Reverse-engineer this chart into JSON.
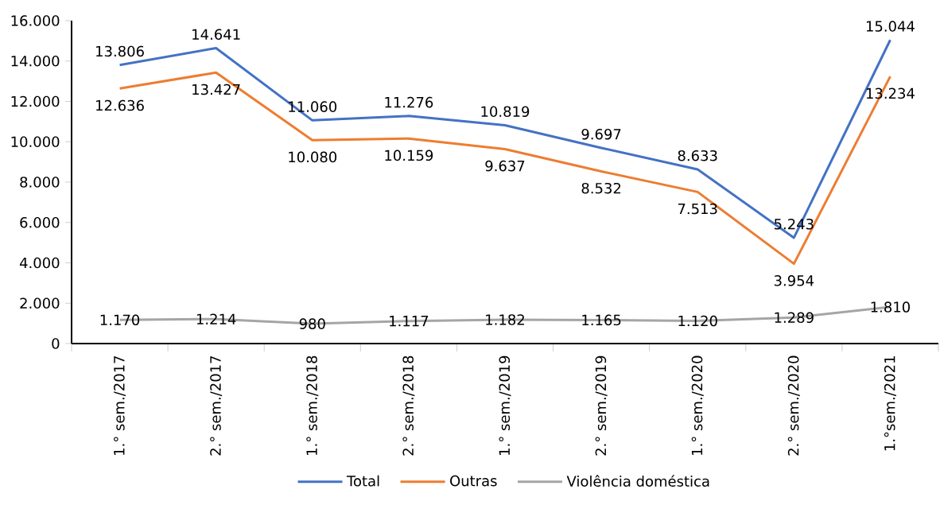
{
  "chart_data": {
    "type": "line",
    "categories": [
      "1.° sem./2017",
      "2.° sem./2017",
      "1.° sem./2018",
      "2.° sem./2018",
      "1.° sem./2019",
      "2.° sem./2019",
      "1.° sem./2020",
      "2.° sem./2020",
      "1.°sem./2021"
    ],
    "series": [
      {
        "name": "Total",
        "color": "#4472c4",
        "values": [
          13806,
          14641,
          11060,
          11276,
          10819,
          9697,
          8633,
          5243,
          15044
        ],
        "value_labels": [
          "13.806",
          "14.641",
          "11.060",
          "11.276",
          "10.819",
          "9.697",
          "8.633",
          "5.243",
          "15.044"
        ]
      },
      {
        "name": "Outras",
        "color": "#ed7d31",
        "values": [
          12636,
          13427,
          10080,
          10159,
          9637,
          8532,
          7513,
          3954,
          13234
        ],
        "value_labels": [
          "12.636",
          "13.427",
          "10.080",
          "10.159",
          "9.637",
          "8.532",
          "7.513",
          "3.954",
          "13.234"
        ]
      },
      {
        "name": "Violência doméstica",
        "color": "#a5a5a5",
        "values": [
          1170,
          1214,
          980,
          1117,
          1182,
          1165,
          1120,
          1289,
          1810
        ],
        "value_labels": [
          "1.170",
          "1.214",
          "980",
          "1.117",
          "1.182",
          "1.165",
          "1.120",
          "1.289",
          "1.810"
        ]
      }
    ],
    "ylim": [
      0,
      16000
    ],
    "yticks": [
      {
        "value": 0,
        "label": "0"
      },
      {
        "value": 2000,
        "label": "2.000"
      },
      {
        "value": 4000,
        "label": "4.000"
      },
      {
        "value": 6000,
        "label": "6.000"
      },
      {
        "value": 8000,
        "label": "8.000"
      },
      {
        "value": 10000,
        "label": "10.000"
      },
      {
        "value": 12000,
        "label": "12.000"
      },
      {
        "value": 14000,
        "label": "14.000"
      },
      {
        "value": 16000,
        "label": "16.000"
      }
    ],
    "legend": "bottom",
    "grid": false,
    "marker": "none",
    "line_style": "solid"
  }
}
